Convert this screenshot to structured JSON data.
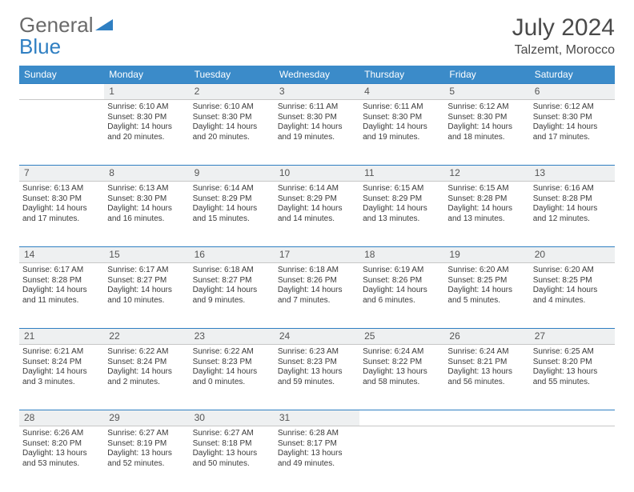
{
  "logo": {
    "word1": "General",
    "word2": "Blue"
  },
  "header": {
    "month": "July 2024",
    "location": "Talzemt, Morocco"
  },
  "colors": {
    "header_bg": "#3b8bc9",
    "header_text": "#ffffff",
    "daynum_bg": "#eef0f1",
    "rule": "#2f7fc2",
    "body_text": "#3a3a3a"
  },
  "weekdays": [
    "Sunday",
    "Monday",
    "Tuesday",
    "Wednesday",
    "Thursday",
    "Friday",
    "Saturday"
  ],
  "weeks": [
    [
      null,
      {
        "n": "1",
        "sr": "6:10 AM",
        "ss": "8:30 PM",
        "dl": "14 hours and 20 minutes."
      },
      {
        "n": "2",
        "sr": "6:10 AM",
        "ss": "8:30 PM",
        "dl": "14 hours and 20 minutes."
      },
      {
        "n": "3",
        "sr": "6:11 AM",
        "ss": "8:30 PM",
        "dl": "14 hours and 19 minutes."
      },
      {
        "n": "4",
        "sr": "6:11 AM",
        "ss": "8:30 PM",
        "dl": "14 hours and 19 minutes."
      },
      {
        "n": "5",
        "sr": "6:12 AM",
        "ss": "8:30 PM",
        "dl": "14 hours and 18 minutes."
      },
      {
        "n": "6",
        "sr": "6:12 AM",
        "ss": "8:30 PM",
        "dl": "14 hours and 17 minutes."
      }
    ],
    [
      {
        "n": "7",
        "sr": "6:13 AM",
        "ss": "8:30 PM",
        "dl": "14 hours and 17 minutes."
      },
      {
        "n": "8",
        "sr": "6:13 AM",
        "ss": "8:30 PM",
        "dl": "14 hours and 16 minutes."
      },
      {
        "n": "9",
        "sr": "6:14 AM",
        "ss": "8:29 PM",
        "dl": "14 hours and 15 minutes."
      },
      {
        "n": "10",
        "sr": "6:14 AM",
        "ss": "8:29 PM",
        "dl": "14 hours and 14 minutes."
      },
      {
        "n": "11",
        "sr": "6:15 AM",
        "ss": "8:29 PM",
        "dl": "14 hours and 13 minutes."
      },
      {
        "n": "12",
        "sr": "6:15 AM",
        "ss": "8:28 PM",
        "dl": "14 hours and 13 minutes."
      },
      {
        "n": "13",
        "sr": "6:16 AM",
        "ss": "8:28 PM",
        "dl": "14 hours and 12 minutes."
      }
    ],
    [
      {
        "n": "14",
        "sr": "6:17 AM",
        "ss": "8:28 PM",
        "dl": "14 hours and 11 minutes."
      },
      {
        "n": "15",
        "sr": "6:17 AM",
        "ss": "8:27 PM",
        "dl": "14 hours and 10 minutes."
      },
      {
        "n": "16",
        "sr": "6:18 AM",
        "ss": "8:27 PM",
        "dl": "14 hours and 9 minutes."
      },
      {
        "n": "17",
        "sr": "6:18 AM",
        "ss": "8:26 PM",
        "dl": "14 hours and 7 minutes."
      },
      {
        "n": "18",
        "sr": "6:19 AM",
        "ss": "8:26 PM",
        "dl": "14 hours and 6 minutes."
      },
      {
        "n": "19",
        "sr": "6:20 AM",
        "ss": "8:25 PM",
        "dl": "14 hours and 5 minutes."
      },
      {
        "n": "20",
        "sr": "6:20 AM",
        "ss": "8:25 PM",
        "dl": "14 hours and 4 minutes."
      }
    ],
    [
      {
        "n": "21",
        "sr": "6:21 AM",
        "ss": "8:24 PM",
        "dl": "14 hours and 3 minutes."
      },
      {
        "n": "22",
        "sr": "6:22 AM",
        "ss": "8:24 PM",
        "dl": "14 hours and 2 minutes."
      },
      {
        "n": "23",
        "sr": "6:22 AM",
        "ss": "8:23 PM",
        "dl": "14 hours and 0 minutes."
      },
      {
        "n": "24",
        "sr": "6:23 AM",
        "ss": "8:23 PM",
        "dl": "13 hours and 59 minutes."
      },
      {
        "n": "25",
        "sr": "6:24 AM",
        "ss": "8:22 PM",
        "dl": "13 hours and 58 minutes."
      },
      {
        "n": "26",
        "sr": "6:24 AM",
        "ss": "8:21 PM",
        "dl": "13 hours and 56 minutes."
      },
      {
        "n": "27",
        "sr": "6:25 AM",
        "ss": "8:20 PM",
        "dl": "13 hours and 55 minutes."
      }
    ],
    [
      {
        "n": "28",
        "sr": "6:26 AM",
        "ss": "8:20 PM",
        "dl": "13 hours and 53 minutes."
      },
      {
        "n": "29",
        "sr": "6:27 AM",
        "ss": "8:19 PM",
        "dl": "13 hours and 52 minutes."
      },
      {
        "n": "30",
        "sr": "6:27 AM",
        "ss": "8:18 PM",
        "dl": "13 hours and 50 minutes."
      },
      {
        "n": "31",
        "sr": "6:28 AM",
        "ss": "8:17 PM",
        "dl": "13 hours and 49 minutes."
      },
      null,
      null,
      null
    ]
  ],
  "labels": {
    "sunrise": "Sunrise:",
    "sunset": "Sunset:",
    "daylight": "Daylight:"
  }
}
